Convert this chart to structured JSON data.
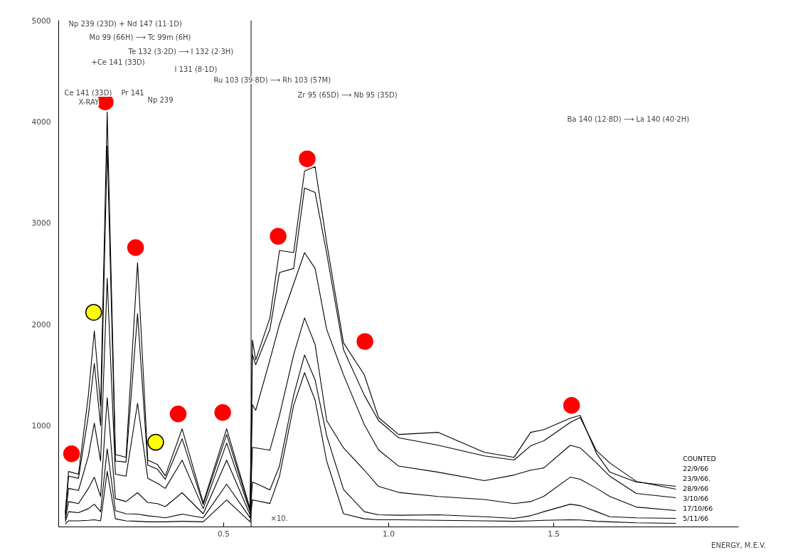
{
  "chart_data": {
    "type": "line",
    "xlabel": "ENERGY, M.E.V.",
    "legend_title": "COUNTED",
    "legend": "bottom right",
    "grid": false,
    "marker": "none",
    "line_style": "solid",
    "xlim": [
      0,
      2.06
    ],
    "ylim": [
      0,
      5000
    ],
    "xticks": [
      {
        "value": 0.5,
        "label": "0.5"
      },
      {
        "value": 1.0,
        "label": "1.0"
      },
      {
        "value": 1.5,
        "label": "1.5"
      }
    ],
    "yticks": [
      1000,
      2000,
      3000,
      4000,
      5000
    ],
    "x": [
      0.02,
      0.03,
      0.06,
      0.09,
      0.108,
      0.127,
      0.147,
      0.172,
      0.204,
      0.239,
      0.27,
      0.299,
      0.323,
      0.374,
      0.438,
      0.509,
      0.58,
      0.587,
      0.597,
      0.64,
      0.669,
      0.712,
      0.745,
      0.777,
      0.812,
      0.863,
      0.926,
      0.969,
      1.03,
      1.15,
      1.29,
      1.38,
      1.43,
      1.47,
      1.55,
      1.58,
      1.63,
      1.67,
      1.75,
      1.87
    ],
    "series": [
      {
        "name": "22/9/66",
        "color": "#000000",
        "values": [
          140,
          547,
          520,
          1300,
          1935,
          1192,
          4095,
          715,
          687,
          2609,
          659,
          617,
          505,
          968,
          238,
          968,
          180,
          1844,
          1648,
          2062,
          2728,
          2707,
          3513,
          3555,
          2805,
          1816,
          1501,
          1080,
          912,
          933,
          736,
          687,
          933,
          960,
          1073,
          1101,
          722,
          540,
          442,
          400
        ]
      },
      {
        "name": "23/9/66.",
        "color": "#000000",
        "values": [
          120,
          500,
          480,
          1100,
          1613,
          1000,
          3759,
          650,
          640,
          2104,
          610,
          570,
          470,
          870,
          220,
          912,
          170,
          1700,
          1600,
          1950,
          2511,
          2550,
          3345,
          3300,
          2700,
          1750,
          1300,
          1050,
          880,
          806,
          700,
          660,
          800,
          850,
          1031,
          1080,
          750,
          631,
          450,
          372
        ]
      },
      {
        "name": "28/9/66",
        "color": "#000000",
        "values": [
          90,
          380,
          360,
          700,
          1024,
          650,
          2454,
          520,
          500,
          1220,
          480,
          430,
          380,
          659,
          180,
          828,
          150,
          1206,
          1150,
          1648,
          2000,
          2400,
          2707,
          2550,
          1950,
          1500,
          1010,
          760,
          600,
          540,
          456,
          512,
          560,
          582,
          806,
          780,
          630,
          500,
          330,
          288
        ]
      },
      {
        "name": "3/10/66",
        "color": "#000000",
        "values": [
          70,
          250,
          230,
          380,
          491,
          300,
          1276,
          280,
          250,
          337,
          240,
          230,
          200,
          337,
          130,
          659,
          120,
          785,
          780,
          757,
          1100,
          1700,
          2062,
          1800,
          1050,
          780,
          560,
          400,
          340,
          300,
          270,
          230,
          250,
          302,
          491,
          470,
          380,
          300,
          196,
          161
        ]
      },
      {
        "name": "17/10/66",
        "color": "#000000",
        "values": [
          50,
          150,
          140,
          180,
          224,
          150,
          771,
          160,
          130,
          126,
          110,
          100,
          90,
          126,
          90,
          421,
          90,
          442,
          430,
          365,
          600,
          1300,
          1697,
          1450,
          900,
          370,
          150,
          119,
          115,
          119,
          100,
          84,
          110,
          150,
          224,
          210,
          150,
          100,
          90,
          84
        ]
      },
      {
        "name": "5/11/66",
        "color": "#000000",
        "values": [
          30,
          60,
          60,
          65,
          70,
          60,
          547,
          80,
          60,
          55,
          50,
          50,
          50,
          55,
          50,
          266,
          50,
          266,
          260,
          231,
          500,
          1200,
          1522,
          1250,
          650,
          130,
          80,
          70,
          70,
          65,
          60,
          55,
          60,
          65,
          70,
          68,
          55,
          50,
          40,
          35
        ]
      },
      {
        "type": "scatter",
        "color": "#ff0000",
        "marker": "circle",
        "x": [
          0.039,
          0.141,
          0.233,
          0.362,
          0.497,
          0.665,
          0.753,
          0.928,
          1.554
        ],
        "values": [
          722,
          4194,
          2756,
          1115,
          1129,
          2868,
          3633,
          1830,
          1199
        ]
      },
      {
        "type": "scatter",
        "color": "#ffff00",
        "marker": "circle",
        "x": [
          0.106,
          0.294
        ],
        "values": [
          2118,
          835
        ]
      }
    ],
    "ref_lines": [
      {
        "axis": "x",
        "value": 0.583,
        "color": "#000000"
      }
    ],
    "annotations": [
      "Np 239 (23D) + Nd 147 (11·1D)",
      "Mo 99 (66H) ⟶ Tc 99m (6H)",
      "Te 132 (3·2D) ⟶ I 132 (2·3H)",
      "+Ce 141 (33D)",
      "I 131 (8·1D)",
      "Ru 103 (39·8D) ⟶ Rh 103 (57M)",
      "Ce 141 (33D)",
      "X-RAY",
      "Pr 141",
      "Np 239",
      "Zr 95 (65D) ⟶ Nb 95 (35D)",
      "Ba 140 (12·8D) ⟶ La 140 (40·2H)",
      "×10."
    ]
  }
}
